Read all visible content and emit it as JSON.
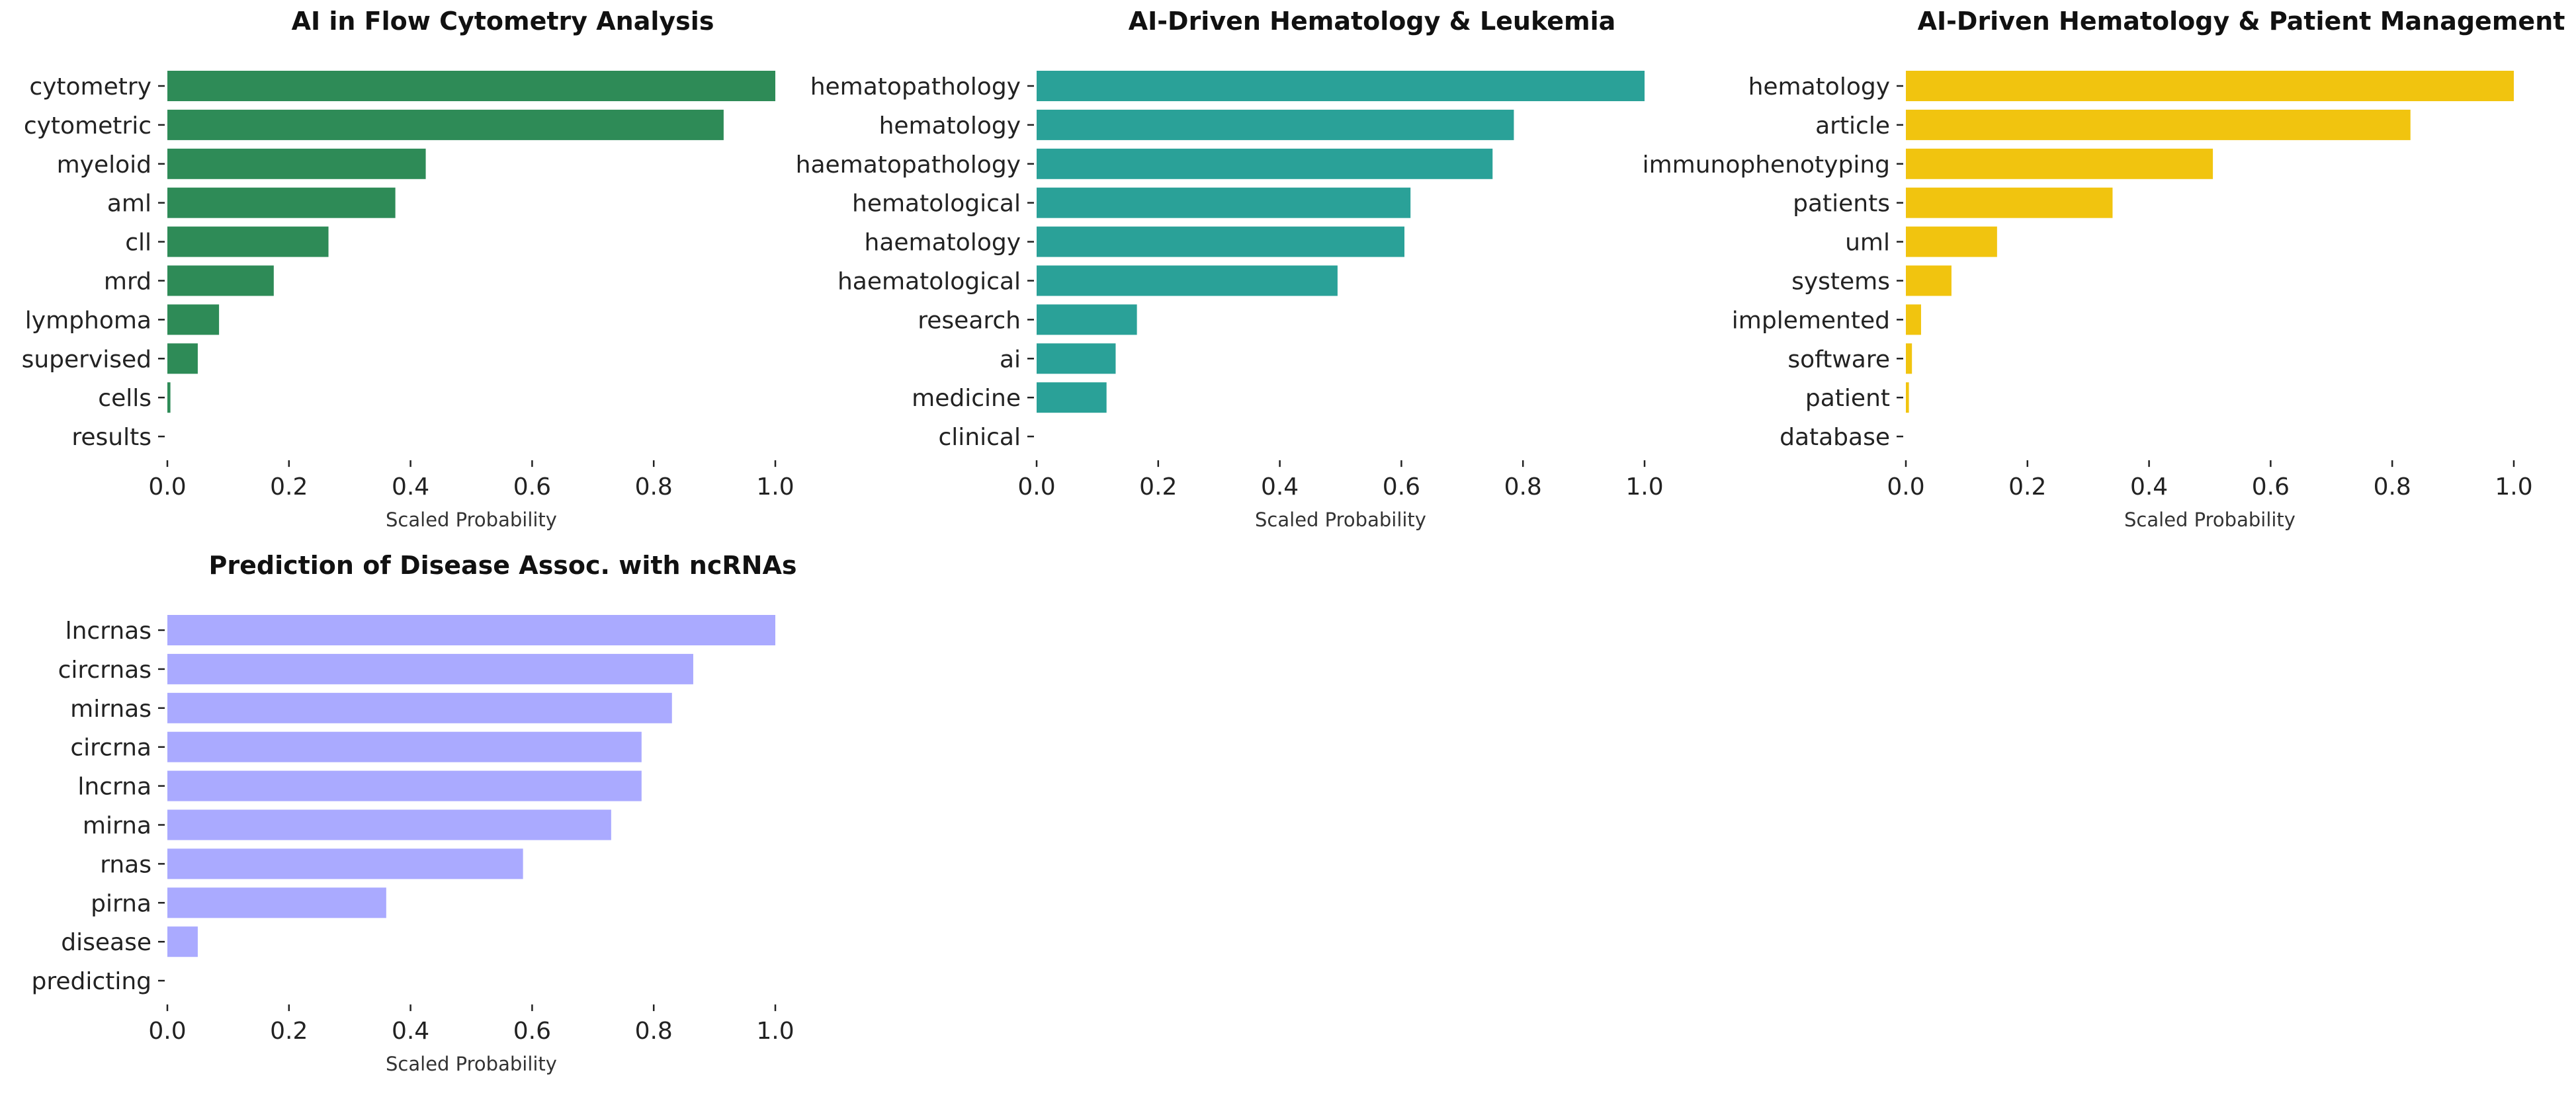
{
  "chart_data": [
    {
      "type": "bar",
      "orientation": "horizontal",
      "title": "AI in Flow Cytometry Analysis",
      "xlabel": "Scaled Probability",
      "ylabel": "",
      "xlim": [
        0,
        1
      ],
      "xticks": [
        "0.0",
        "0.2",
        "0.4",
        "0.6",
        "0.8",
        "1.0"
      ],
      "grid": false,
      "color": "#2e8b57",
      "categories": [
        "cytometry",
        "cytometric",
        "myeloid",
        "aml",
        "cll",
        "mrd",
        "lymphoma",
        "supervised",
        "cells",
        "results"
      ],
      "values": [
        1.0,
        0.915,
        0.425,
        0.375,
        0.265,
        0.175,
        0.085,
        0.05,
        0.005,
        0.0
      ]
    },
    {
      "type": "bar",
      "orientation": "horizontal",
      "title": "AI-Driven Hematology & Leukemia",
      "xlabel": "Scaled Probability",
      "ylabel": "",
      "xlim": [
        0,
        1
      ],
      "xticks": [
        "0.0",
        "0.2",
        "0.4",
        "0.6",
        "0.8",
        "1.0"
      ],
      "grid": false,
      "color": "#2aa198",
      "categories": [
        "hematopathology",
        "hematology",
        "haematopathology",
        "hematological",
        "haematology",
        "haematological",
        "research",
        "ai",
        "medicine",
        "clinical"
      ],
      "values": [
        1.0,
        0.785,
        0.75,
        0.615,
        0.605,
        0.495,
        0.165,
        0.13,
        0.115,
        0.0
      ]
    },
    {
      "type": "bar",
      "orientation": "horizontal",
      "title": "AI-Driven Hematology & Patient Management",
      "xlabel": "Scaled Probability",
      "ylabel": "",
      "xlim": [
        0,
        1
      ],
      "xticks": [
        "0.0",
        "0.2",
        "0.4",
        "0.6",
        "0.8",
        "1.0"
      ],
      "grid": false,
      "color": "#f1c40f",
      "categories": [
        "hematology",
        "article",
        "immunophenotyping",
        "patients",
        "uml",
        "systems",
        "implemented",
        "software",
        "patient",
        "database"
      ],
      "values": [
        1.0,
        0.83,
        0.505,
        0.34,
        0.15,
        0.075,
        0.025,
        0.01,
        0.005,
        0.0
      ]
    },
    {
      "type": "bar",
      "orientation": "horizontal",
      "title": "Prediction of Disease Assoc. with ncRNAs",
      "xlabel": "Scaled Probability",
      "ylabel": "",
      "xlim": [
        0,
        1
      ],
      "xticks": [
        "0.0",
        "0.2",
        "0.4",
        "0.6",
        "0.8",
        "1.0"
      ],
      "grid": false,
      "color": "#aaaaff",
      "categories": [
        "lncrnas",
        "circrnas",
        "mirnas",
        "circrna",
        "lncrna",
        "mirna",
        "rnas",
        "pirna",
        "disease",
        "predicting"
      ],
      "values": [
        1.0,
        0.865,
        0.83,
        0.78,
        0.78,
        0.73,
        0.585,
        0.36,
        0.05,
        0.0
      ]
    }
  ]
}
